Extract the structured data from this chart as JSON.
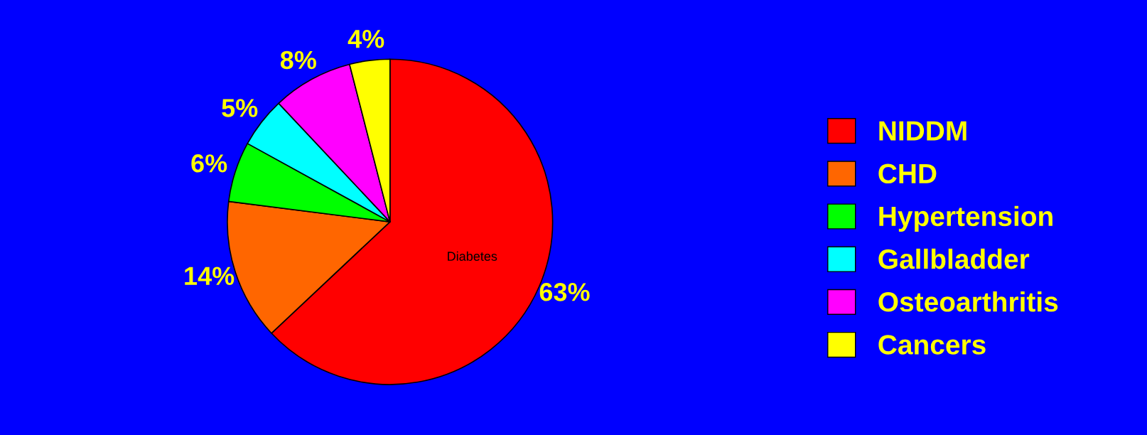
{
  "chart_data": {
    "type": "pie",
    "categories": [
      "NIDDM",
      "CHD",
      "Hypertension",
      "Gallbladder",
      "Osteoarthritis",
      "Cancers"
    ],
    "values": [
      63,
      14,
      6,
      5,
      8,
      4
    ],
    "value_labels": [
      "63%",
      "14%",
      "6%",
      "5%",
      "8%",
      "4%"
    ],
    "colors": [
      "#ff0000",
      "#ff6600",
      "#00ff00",
      "#00ffff",
      "#ff00ff",
      "#ffff00"
    ],
    "annotations": [
      "Diabetes"
    ],
    "legend": "right"
  }
}
